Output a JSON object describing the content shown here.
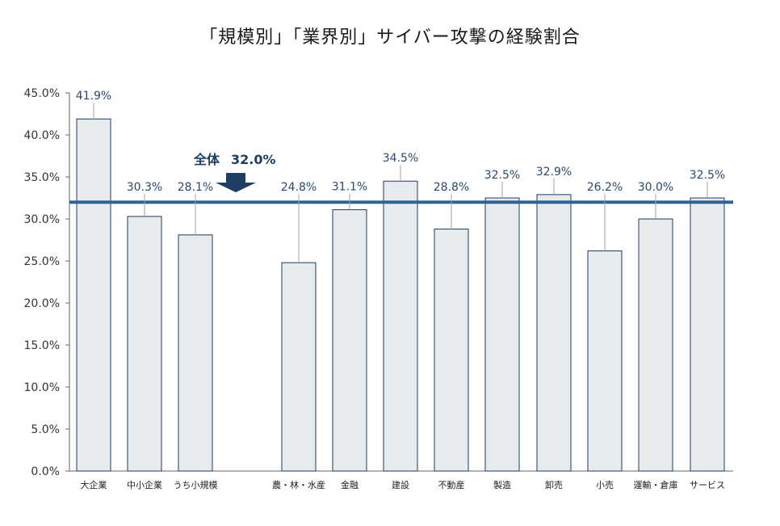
{
  "chart_data": {
    "type": "bar",
    "title": "「規模別」「業界別」サイバー攻撃の経験割合",
    "ylim": [
      0,
      45
    ],
    "yticks": [
      "0.0%",
      "5.0%",
      "10.0%",
      "15.0%",
      "20.0%",
      "25.0%",
      "30.0%",
      "35.0%",
      "40.0%",
      "45.0%"
    ],
    "groups": [
      {
        "categories": [
          "大企業",
          "中小企業",
          "うち小規模"
        ],
        "values": [
          41.9,
          30.3,
          28.1
        ],
        "labels": [
          "41.9%",
          "30.3%",
          "28.1%"
        ]
      },
      {
        "categories": [
          "農・林・水産",
          "金融",
          "建設",
          "不動産",
          "製造",
          "卸売",
          "小売",
          "運輸・倉庫",
          "サービス"
        ],
        "values": [
          24.8,
          31.1,
          34.5,
          28.8,
          32.5,
          32.9,
          26.2,
          30.0,
          32.5
        ],
        "labels": [
          "24.8%",
          "31.1%",
          "34.5%",
          "28.8%",
          "32.5%",
          "32.9%",
          "26.2%",
          "30.0%",
          "32.5%"
        ]
      }
    ],
    "reference_line": {
      "value": 32.0,
      "label": "全体",
      "value_label": "32.0%"
    },
    "colors": {
      "bar_fill": "#e8ebee",
      "bar_stroke": "#1f3a5f",
      "reference_line": "#2e6396",
      "arrow": "#1f3d63",
      "data_label": "#2a4a6f"
    },
    "grid": false,
    "legend": "none"
  }
}
